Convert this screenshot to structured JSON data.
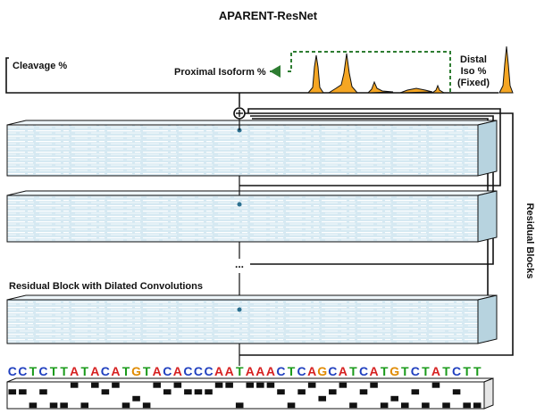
{
  "title": "APARENT-ResNet",
  "labels": {
    "cleavage": "Cleavage %",
    "proximal": "Proximal Isoform %",
    "distal_line1": "Distal",
    "distal_line2": "Iso %",
    "distal_line3": "(Fixed)",
    "residual_block": "Residual Block with Dilated Convolutions",
    "residual_blocks": "Residual Blocks",
    "ellipsis": "..."
  },
  "sequence": "CCTCTTATACATGTACACCCAATAAACTCAGCATCATGTCTATCTT",
  "colors": {
    "A": "#d62020",
    "C": "#1f3fbf",
    "G": "#e08a00",
    "T": "#1a9a1a",
    "layer": "#d6e9f2",
    "proximal_arrow": "#2e7d32",
    "peak_fill": "#f5a623"
  }
}
